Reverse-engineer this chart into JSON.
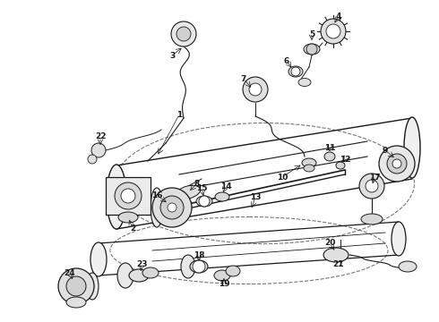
{
  "bg_color": "#ffffff",
  "line_color": "#1a1a1a",
  "text_color": "#1a1a1a",
  "fig_width": 4.9,
  "fig_height": 3.6,
  "dpi": 100
}
